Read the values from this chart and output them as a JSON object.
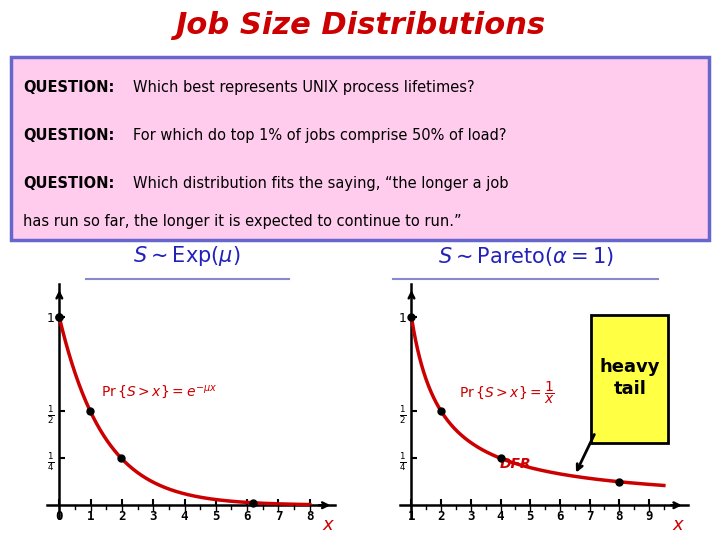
{
  "title": "Job Size Distributions",
  "title_color": "#cc0000",
  "title_bg": "#ffff44",
  "question_bg": "#ffccee",
  "question_border": "#6666cc",
  "curve_color": "#cc0000",
  "dot_color": "#000000",
  "formula_color": "#2222bb",
  "underline_color": "#8888cc",
  "heavy_tail_bg": "#ffff44",
  "heavy_tail_border": "#888800",
  "background": "#ffffff",
  "slide_bg": "#ffffff",
  "dfr_label": "DFR",
  "heavy_tail": "heavy\ntail"
}
